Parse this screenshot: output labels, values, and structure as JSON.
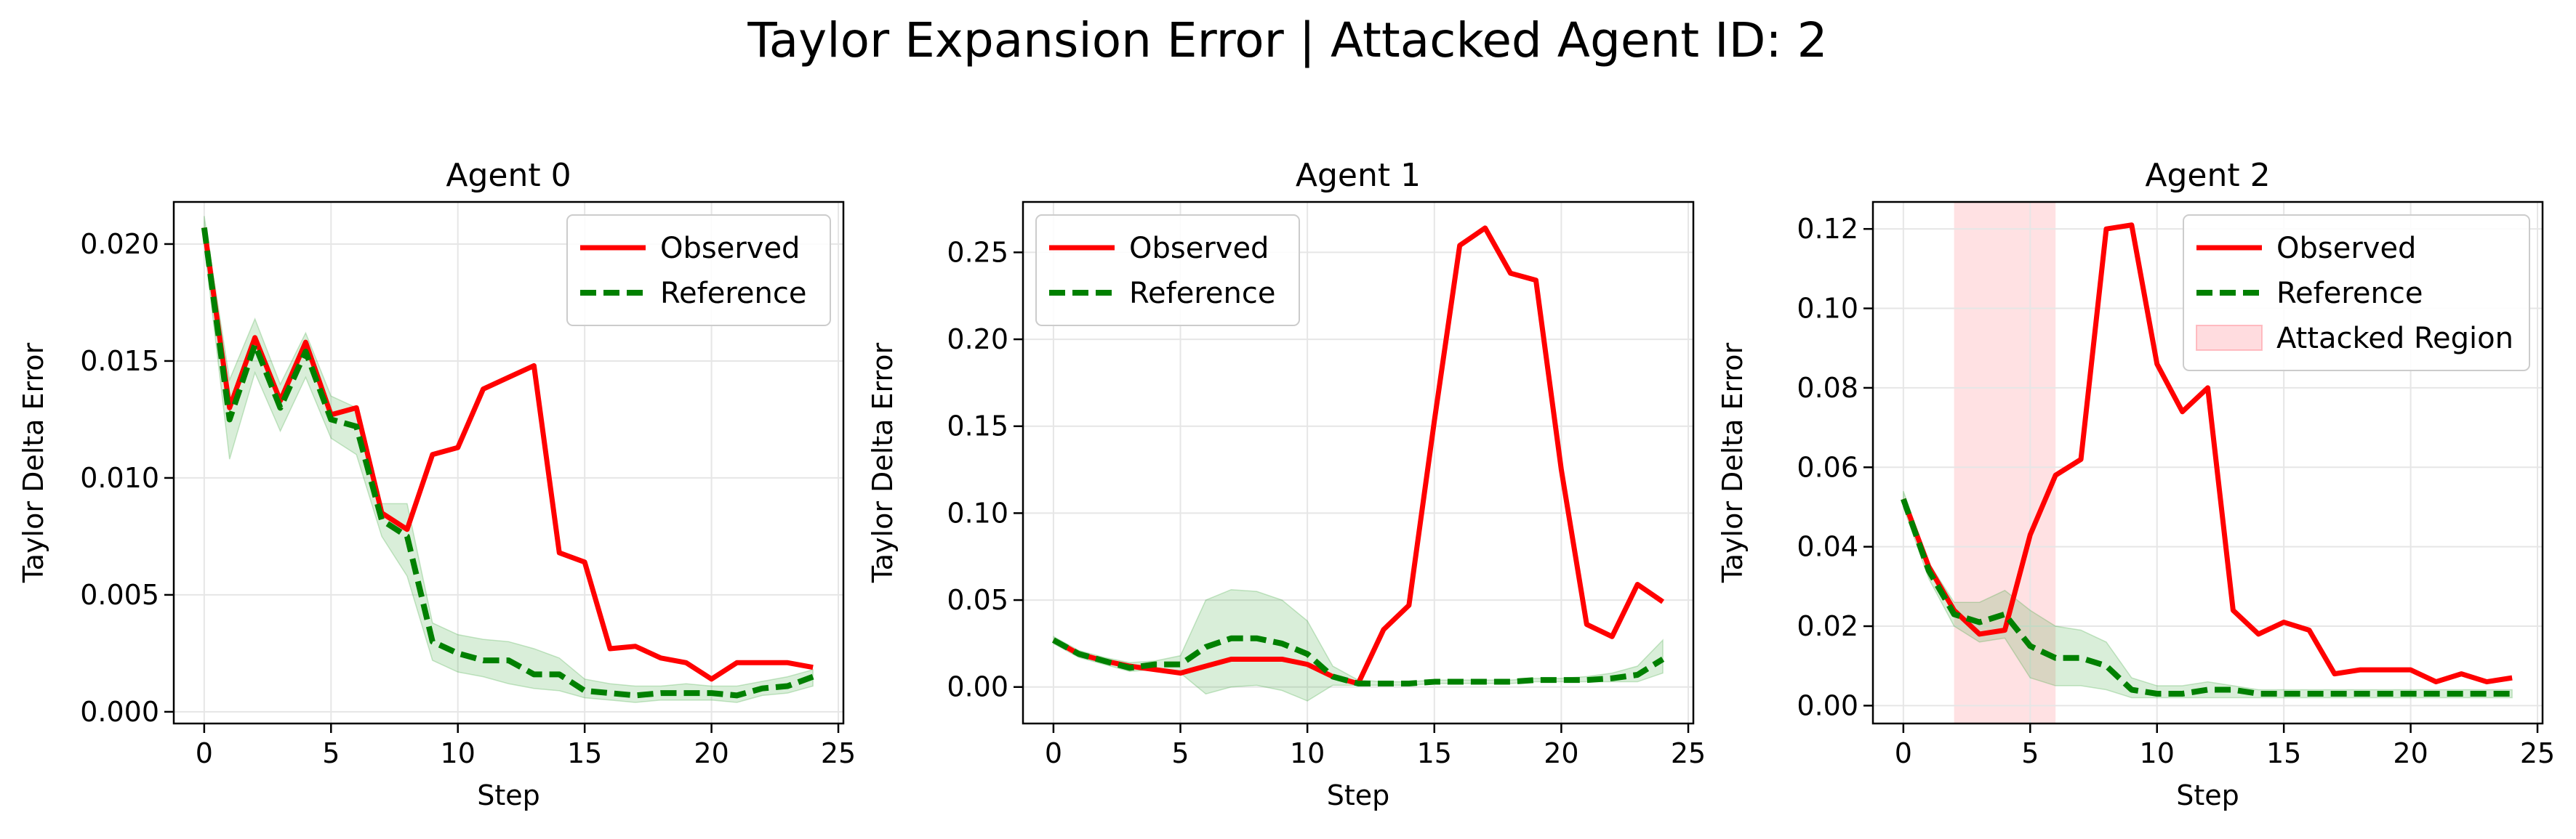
{
  "title": "Taylor Expansion Error | Attacked Agent ID: 2",
  "colors": {
    "observed": "#ff0000",
    "reference": "#008000",
    "band": "#2ca02c",
    "attacked": "#ff9aa2"
  },
  "chart_data": [
    {
      "type": "line",
      "title": "Agent 0",
      "xlabel": "Step",
      "ylabel": "Taylor Delta Error",
      "xlim": [
        -1.2,
        25.2
      ],
      "ylim": [
        -0.0005,
        0.0218
      ],
      "xticks": [
        0,
        5,
        10,
        15,
        20,
        25
      ],
      "xtick_labels": [
        "0",
        "5",
        "10",
        "15",
        "20",
        "25"
      ],
      "yticks": [
        0.0,
        0.005,
        0.01,
        0.015,
        0.02
      ],
      "ytick_labels": [
        "0.000",
        "0.005",
        "0.010",
        "0.015",
        "0.020"
      ],
      "grid": true,
      "legend": "upper right",
      "legend_entries": [
        "Observed",
        "Reference"
      ],
      "x": [
        0,
        1,
        2,
        3,
        4,
        5,
        6,
        7,
        8,
        9,
        10,
        11,
        12,
        13,
        14,
        15,
        16,
        17,
        18,
        19,
        20,
        21,
        22,
        23,
        24
      ],
      "series": [
        {
          "name": "Observed",
          "style": "solid",
          "values": [
            0.0207,
            0.013,
            0.016,
            0.0133,
            0.0158,
            0.0127,
            0.013,
            0.0085,
            0.0078,
            0.011,
            0.0113,
            0.0138,
            0.0143,
            0.0148,
            0.0068,
            0.0064,
            0.0027,
            0.0028,
            0.0023,
            0.0021,
            0.0014,
            0.0021,
            0.0021,
            0.0021,
            0.0019
          ]
        },
        {
          "name": "Reference",
          "style": "dashed",
          "values": [
            0.0207,
            0.0125,
            0.0157,
            0.013,
            0.0154,
            0.0125,
            0.0122,
            0.0082,
            0.0075,
            0.003,
            0.0025,
            0.0022,
            0.0022,
            0.0016,
            0.0016,
            0.0009,
            0.0008,
            0.0007,
            0.0008,
            0.0008,
            0.0008,
            0.0007,
            0.001,
            0.0011,
            0.0015
          ]
        }
      ],
      "band": {
        "upper": [
          0.0212,
          0.0142,
          0.0168,
          0.014,
          0.0162,
          0.0135,
          0.013,
          0.0089,
          0.0089,
          0.0038,
          0.0033,
          0.0031,
          0.003,
          0.0027,
          0.0023,
          0.0014,
          0.0012,
          0.0011,
          0.0011,
          0.0012,
          0.0011,
          0.0011,
          0.0013,
          0.0015,
          0.0018
        ],
        "lower": [
          0.02,
          0.0108,
          0.0145,
          0.012,
          0.0143,
          0.0117,
          0.011,
          0.0075,
          0.0058,
          0.0022,
          0.0017,
          0.0015,
          0.0012,
          0.001,
          0.0009,
          0.0006,
          0.0005,
          0.0004,
          0.0005,
          0.0005,
          0.0005,
          0.0004,
          0.0007,
          0.0008,
          0.0011
        ]
      }
    },
    {
      "type": "line",
      "title": "Agent 1",
      "xlabel": "Step",
      "ylabel": "Taylor Delta Error",
      "xlim": [
        -1.2,
        25.2
      ],
      "ylim": [
        -0.021,
        0.279
      ],
      "xticks": [
        0,
        5,
        10,
        15,
        20,
        25
      ],
      "xtick_labels": [
        "0",
        "5",
        "10",
        "15",
        "20",
        "25"
      ],
      "yticks": [
        0.0,
        0.05,
        0.1,
        0.15,
        0.2,
        0.25
      ],
      "ytick_labels": [
        "0.00",
        "0.05",
        "0.10",
        "0.15",
        "0.20",
        "0.25"
      ],
      "grid": true,
      "legend": "upper left",
      "legend_entries": [
        "Observed",
        "Reference"
      ],
      "x": [
        0,
        1,
        2,
        3,
        4,
        5,
        6,
        7,
        8,
        9,
        10,
        11,
        12,
        13,
        14,
        15,
        16,
        17,
        18,
        19,
        20,
        21,
        22,
        23,
        24
      ],
      "series": [
        {
          "name": "Observed",
          "style": "solid",
          "values": [
            0.027,
            0.019,
            0.015,
            0.012,
            0.01,
            0.008,
            0.012,
            0.016,
            0.016,
            0.016,
            0.013,
            0.006,
            0.002,
            0.033,
            0.047,
            0.153,
            0.254,
            0.264,
            0.238,
            0.234,
            0.125,
            0.036,
            0.029,
            0.059,
            0.049
          ]
        },
        {
          "name": "Reference",
          "style": "dashed",
          "values": [
            0.027,
            0.019,
            0.015,
            0.011,
            0.013,
            0.013,
            0.023,
            0.028,
            0.028,
            0.025,
            0.019,
            0.006,
            0.002,
            0.002,
            0.002,
            0.003,
            0.003,
            0.003,
            0.003,
            0.004,
            0.004,
            0.004,
            0.005,
            0.007,
            0.016
          ]
        }
      ],
      "band": {
        "upper": [
          0.029,
          0.021,
          0.017,
          0.014,
          0.015,
          0.018,
          0.05,
          0.056,
          0.055,
          0.05,
          0.038,
          0.012,
          0.004,
          0.003,
          0.003,
          0.004,
          0.004,
          0.004,
          0.004,
          0.005,
          0.005,
          0.006,
          0.008,
          0.012,
          0.027
        ],
        "lower": [
          0.025,
          0.017,
          0.013,
          0.009,
          0.01,
          0.008,
          -0.004,
          0.0,
          0.001,
          -0.002,
          -0.008,
          0.001,
          0.001,
          0.001,
          0.001,
          0.002,
          0.002,
          0.002,
          0.002,
          0.003,
          0.003,
          0.003,
          0.003,
          0.003,
          0.008
        ]
      }
    },
    {
      "type": "line",
      "title": "Agent 2",
      "xlabel": "Step",
      "ylabel": "Taylor Delta Error",
      "xlim": [
        -1.2,
        25.2
      ],
      "ylim": [
        -0.0045,
        0.1268
      ],
      "xticks": [
        0,
        5,
        10,
        15,
        20,
        25
      ],
      "xtick_labels": [
        "0",
        "5",
        "10",
        "15",
        "20",
        "25"
      ],
      "yticks": [
        0.0,
        0.02,
        0.04,
        0.06,
        0.08,
        0.1,
        0.12
      ],
      "ytick_labels": [
        "0.00",
        "0.02",
        "0.04",
        "0.06",
        "0.08",
        "0.10",
        "0.12"
      ],
      "grid": true,
      "legend": "upper right",
      "legend_entries": [
        "Observed",
        "Reference",
        "Attacked Region"
      ],
      "attacked_region": [
        2,
        6
      ],
      "x": [
        0,
        1,
        2,
        3,
        4,
        5,
        6,
        7,
        8,
        9,
        10,
        11,
        12,
        13,
        14,
        15,
        16,
        17,
        18,
        19,
        20,
        21,
        22,
        23,
        24
      ],
      "series": [
        {
          "name": "Observed",
          "style": "solid",
          "values": [
            0.052,
            0.035,
            0.024,
            0.018,
            0.019,
            0.043,
            0.058,
            0.062,
            0.12,
            0.121,
            0.086,
            0.074,
            0.08,
            0.024,
            0.018,
            0.021,
            0.019,
            0.008,
            0.009,
            0.009,
            0.009,
            0.006,
            0.008,
            0.006,
            0.007
          ]
        },
        {
          "name": "Reference",
          "style": "dashed",
          "values": [
            0.052,
            0.034,
            0.023,
            0.021,
            0.023,
            0.015,
            0.012,
            0.012,
            0.01,
            0.004,
            0.003,
            0.003,
            0.004,
            0.004,
            0.003,
            0.003,
            0.003,
            0.003,
            0.003,
            0.003,
            0.003,
            0.003,
            0.003,
            0.003,
            0.003
          ]
        }
      ],
      "band": {
        "upper": [
          0.054,
          0.036,
          0.026,
          0.026,
          0.029,
          0.024,
          0.02,
          0.019,
          0.016,
          0.007,
          0.005,
          0.005,
          0.006,
          0.005,
          0.004,
          0.004,
          0.004,
          0.004,
          0.004,
          0.004,
          0.004,
          0.004,
          0.004,
          0.004,
          0.004
        ],
        "lower": [
          0.05,
          0.032,
          0.02,
          0.016,
          0.017,
          0.007,
          0.005,
          0.005,
          0.004,
          0.002,
          0.002,
          0.002,
          0.002,
          0.002,
          0.002,
          0.002,
          0.002,
          0.002,
          0.002,
          0.002,
          0.002,
          0.002,
          0.002,
          0.002,
          0.002
        ]
      }
    }
  ]
}
